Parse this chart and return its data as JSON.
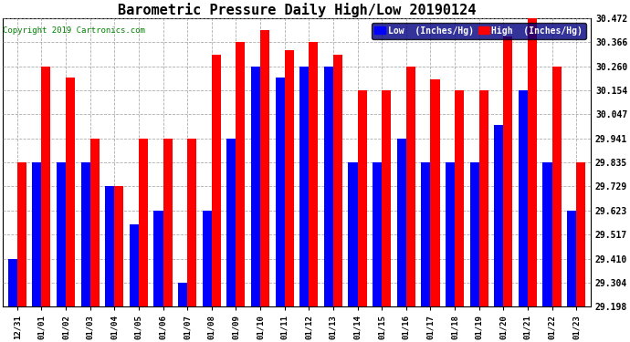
{
  "title": "Barometric Pressure Daily High/Low 20190124",
  "copyright": "Copyright 2019 Cartronics.com",
  "legend_low": "Low  (Inches/Hg)",
  "legend_high": "High  (Inches/Hg)",
  "low_color": "#0000FF",
  "high_color": "#FF0000",
  "background_color": "#FFFFFF",
  "ylim": [
    29.198,
    30.472
  ],
  "yticks": [
    29.198,
    29.304,
    29.41,
    29.517,
    29.623,
    29.729,
    29.835,
    29.941,
    30.047,
    30.154,
    30.26,
    30.366,
    30.472
  ],
  "dates": [
    "12/31",
    "01/01",
    "01/02",
    "01/03",
    "01/04",
    "01/05",
    "01/06",
    "01/07",
    "01/08",
    "01/09",
    "01/10",
    "01/11",
    "01/12",
    "01/13",
    "01/14",
    "01/15",
    "01/16",
    "01/17",
    "01/18",
    "01/19",
    "01/20",
    "01/21",
    "01/22",
    "01/23"
  ],
  "high_values": [
    29.835,
    30.26,
    30.21,
    29.941,
    29.729,
    29.941,
    29.941,
    29.941,
    30.31,
    30.366,
    30.42,
    30.33,
    30.366,
    30.31,
    30.154,
    30.154,
    30.26,
    30.2,
    30.154,
    30.154,
    30.39,
    30.472,
    30.26,
    29.835
  ],
  "low_values": [
    29.41,
    29.835,
    29.835,
    29.835,
    29.729,
    29.56,
    29.623,
    29.304,
    29.623,
    29.941,
    30.26,
    30.21,
    30.26,
    30.26,
    29.835,
    29.835,
    29.941,
    29.835,
    29.835,
    29.835,
    30.0,
    30.154,
    29.835,
    29.623
  ]
}
